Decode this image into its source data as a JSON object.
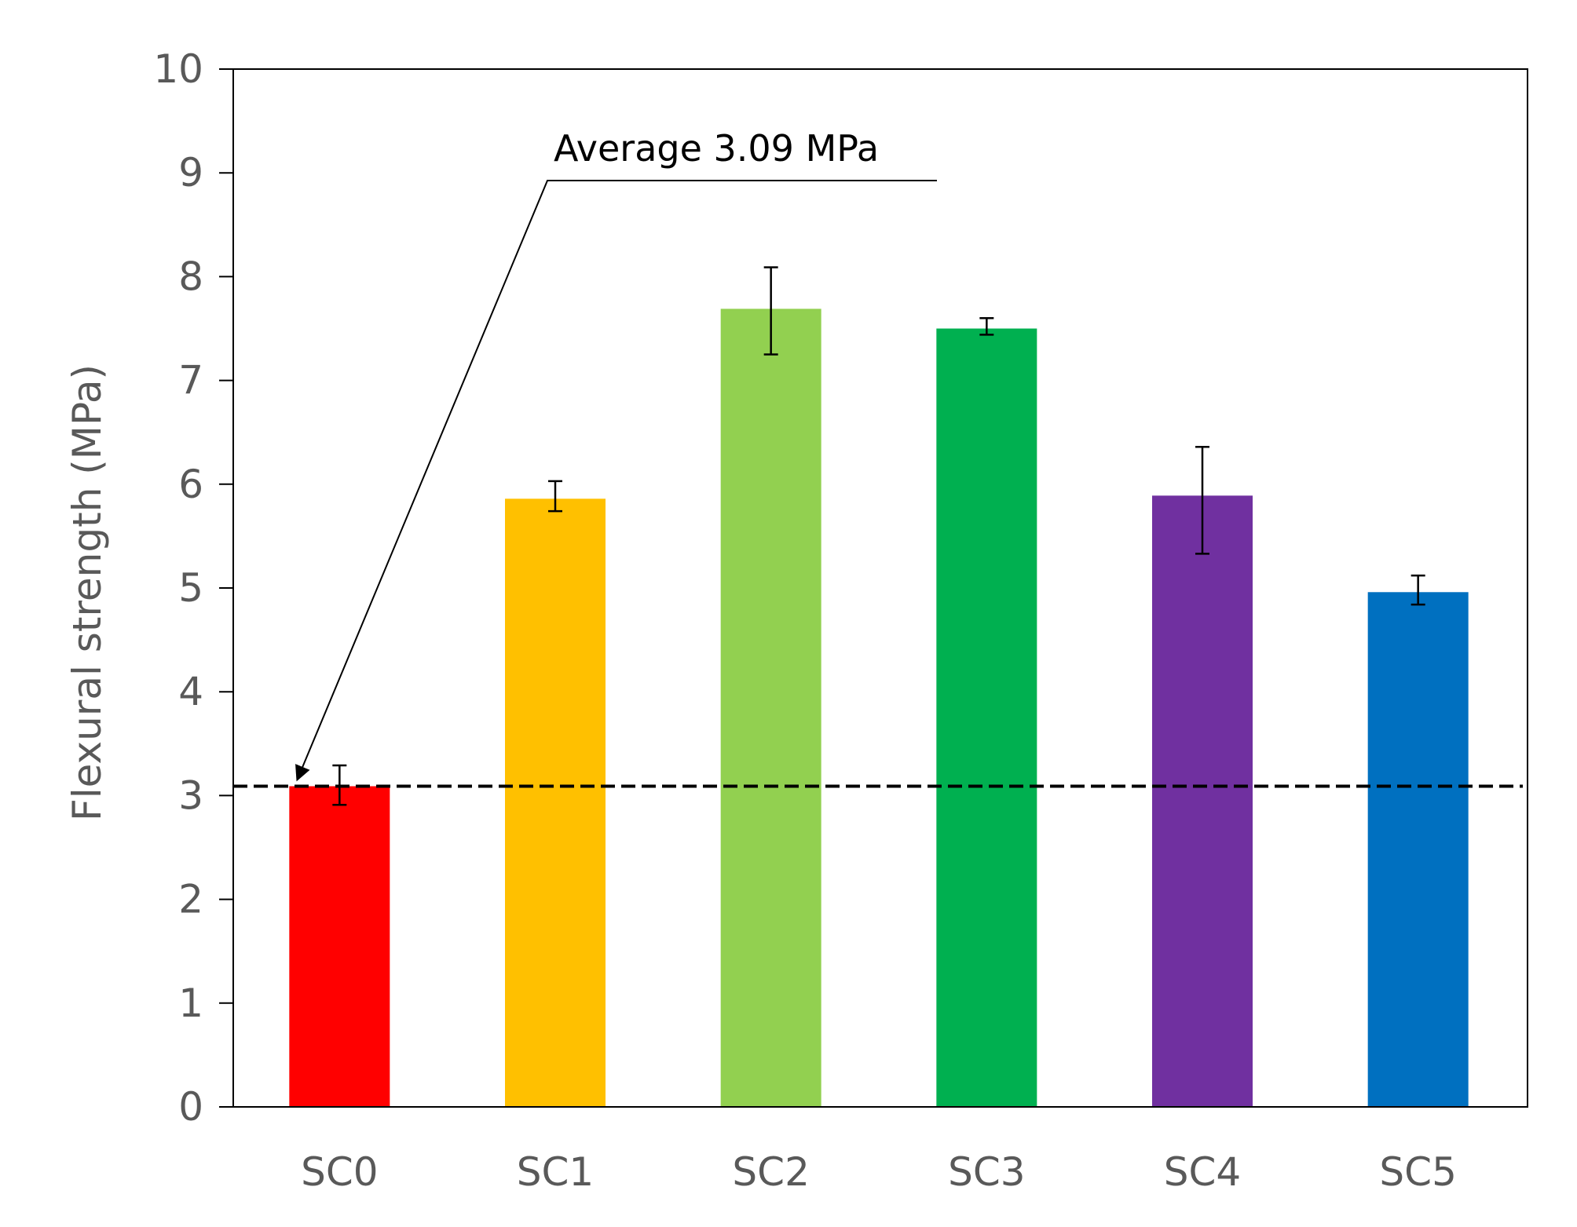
{
  "chart_data": {
    "type": "bar",
    "title": "",
    "xlabel": "",
    "ylabel": "Flexural strength (MPa)",
    "ylim": [
      0,
      10
    ],
    "yticks": [
      "0",
      "1",
      "2",
      "3",
      "4",
      "5",
      "6",
      "7",
      "8",
      "9",
      "10"
    ],
    "grid": false,
    "legend": "none",
    "categories": [
      "SC0",
      "SC1",
      "SC2",
      "SC3",
      "SC4",
      "SC5"
    ],
    "values": [
      3.09,
      5.86,
      7.69,
      7.5,
      5.89,
      4.96
    ],
    "error_low": [
      2.91,
      5.74,
      7.25,
      7.44,
      5.33,
      4.84
    ],
    "error_high": [
      3.29,
      6.03,
      8.09,
      7.6,
      6.36,
      5.12
    ],
    "bar_colors": [
      "#ff0000",
      "#ffc000",
      "#92d050",
      "#00b050",
      "#7030a0",
      "#0070c0"
    ],
    "reference_line": {
      "value": 3.09,
      "style": "dashed",
      "color": "#000000"
    },
    "annotation": {
      "text": "Average 3.09 MPa",
      "points_to": {
        "category": "SC0",
        "value": 3.09
      }
    }
  }
}
